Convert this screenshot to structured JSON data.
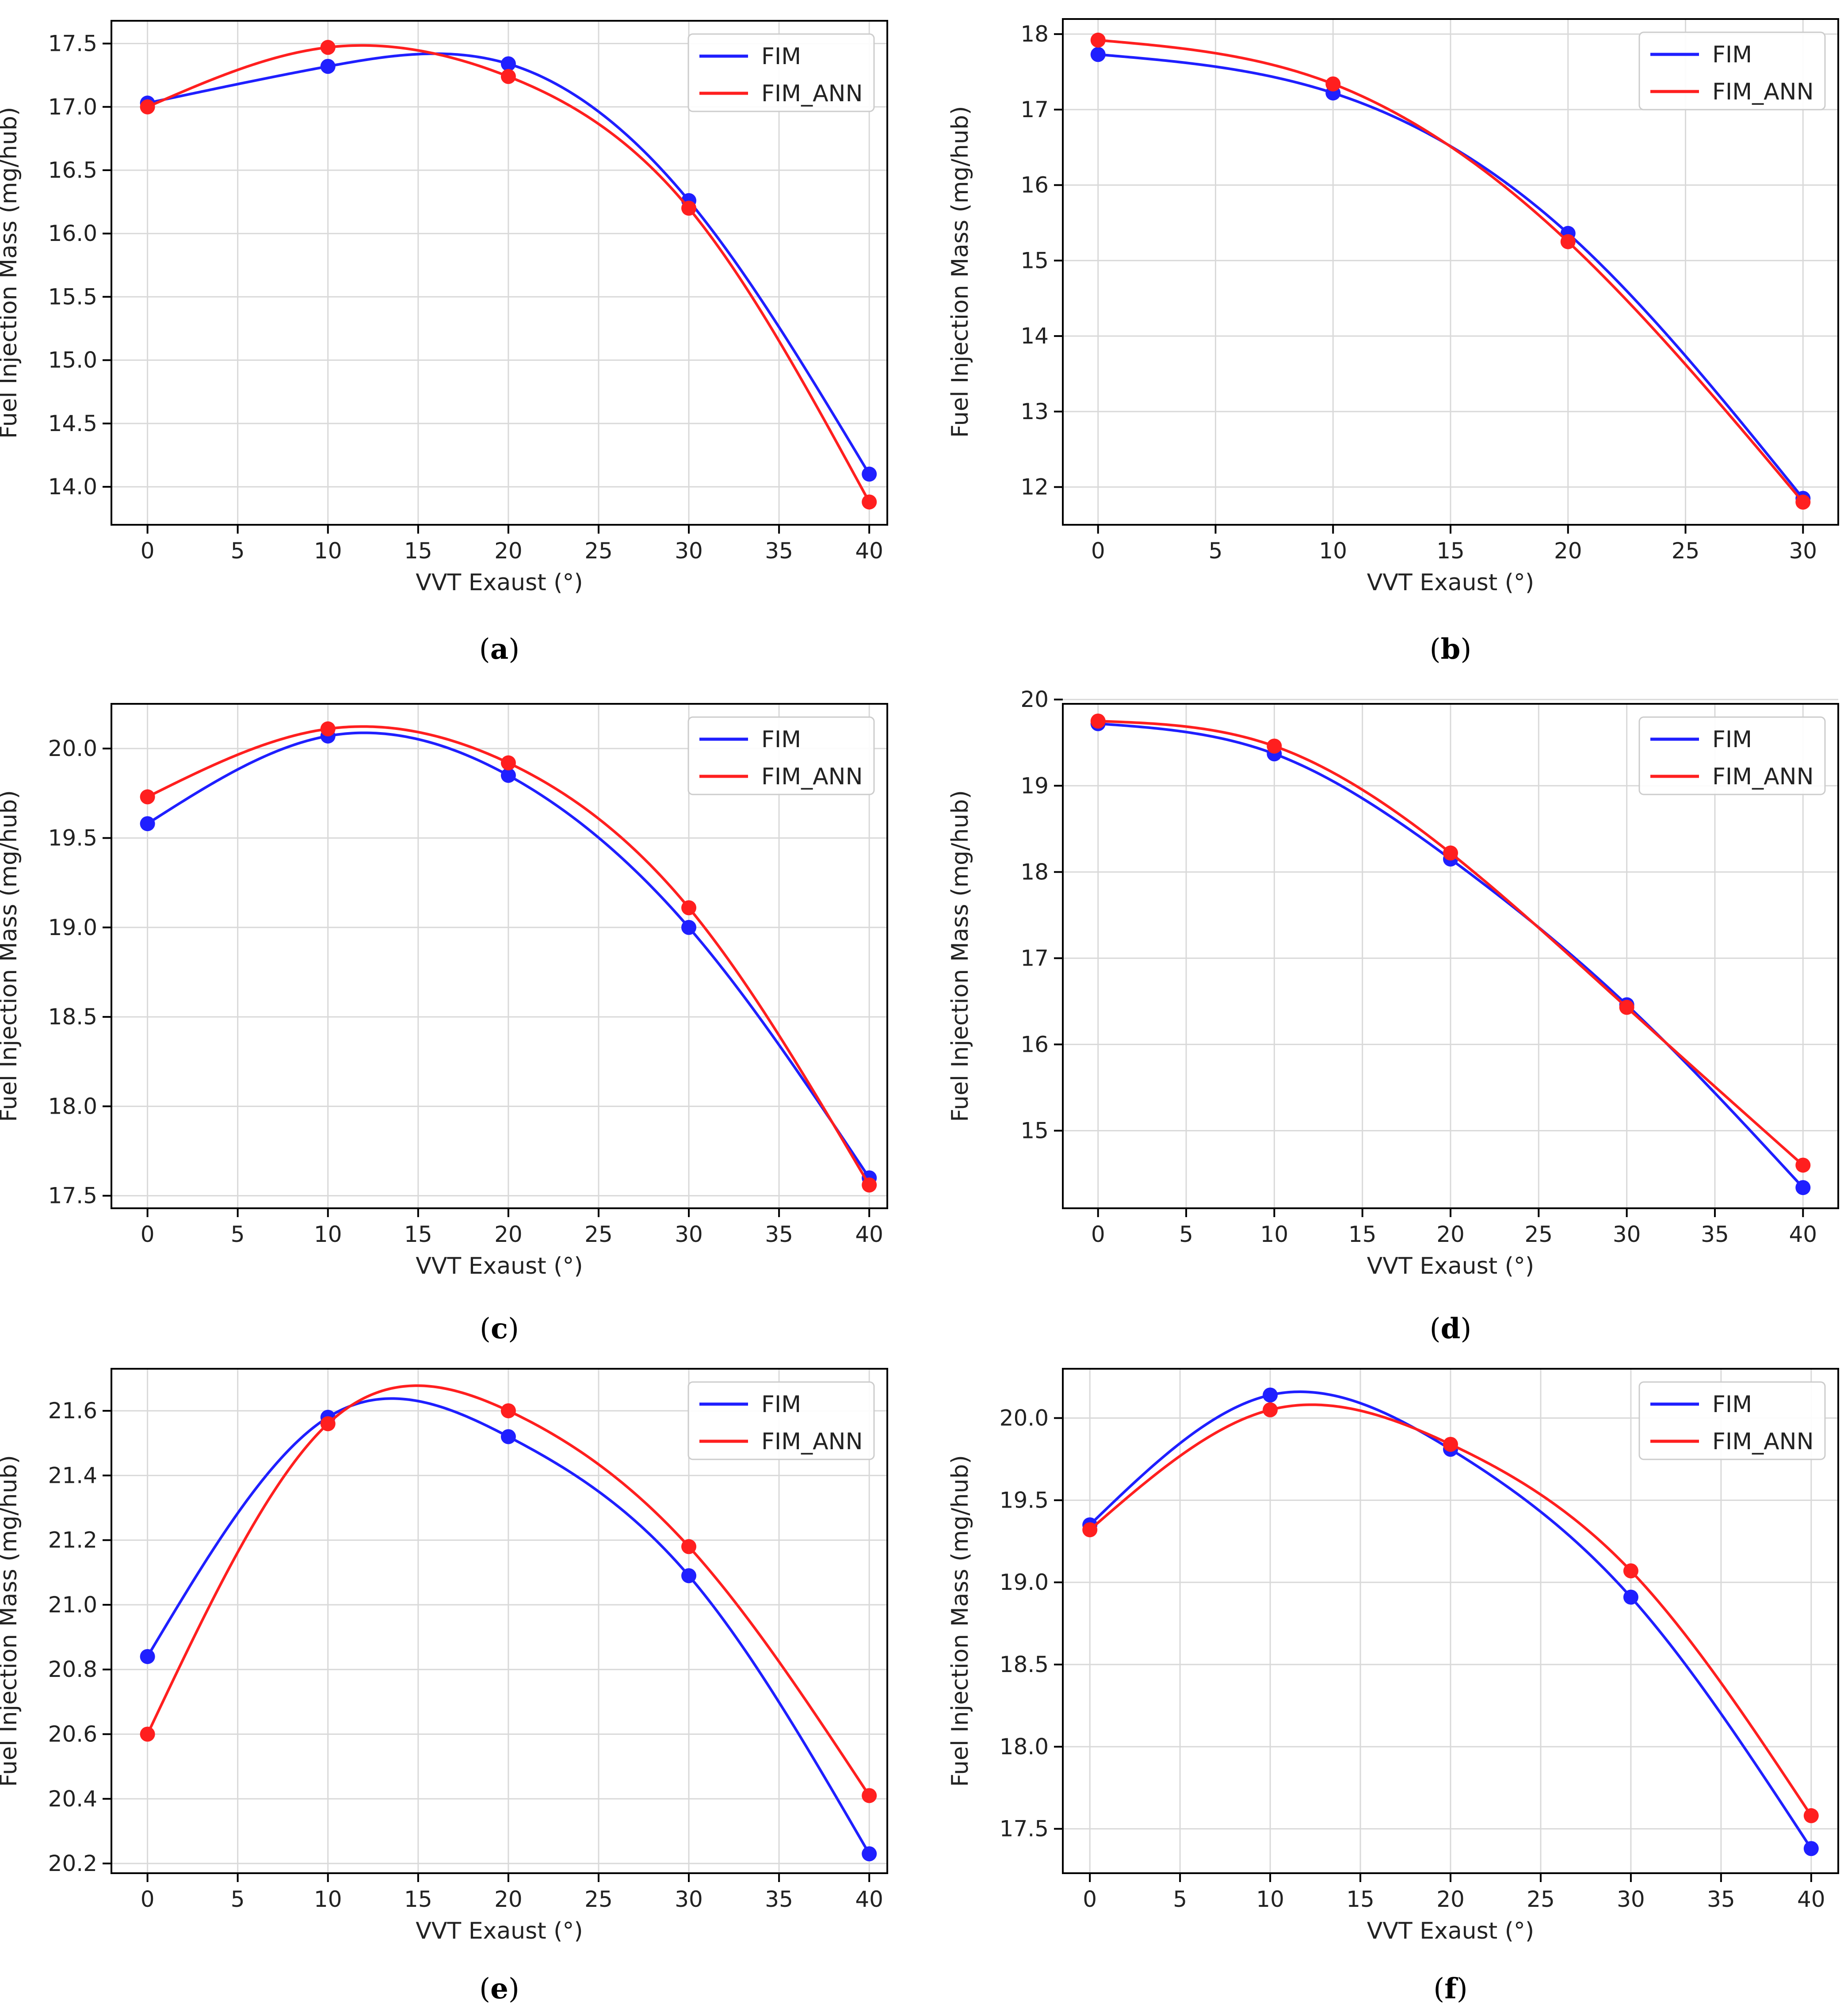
{
  "chart_data": [
    {
      "id": "a",
      "type": "line",
      "caption_label": "a",
      "xlabel": "VVT Exaust (°)",
      "ylabel": "Fuel Injection Mass (mg/hub)",
      "xlim": [
        -2,
        41
      ],
      "ylim": [
        13.7,
        17.68
      ],
      "xticks": [
        0,
        5,
        10,
        15,
        20,
        25,
        30,
        35,
        40
      ],
      "yticks": [
        14.0,
        14.5,
        15.0,
        15.5,
        16.0,
        16.5,
        17.0,
        17.5
      ],
      "ytick_decimals": 1,
      "grid": true,
      "legend": "top-right",
      "series": [
        {
          "name": "FIM",
          "color": "#1f1fff",
          "x": [
            0,
            10,
            20,
            30,
            40
          ],
          "y": [
            17.03,
            17.32,
            17.34,
            16.26,
            14.1
          ]
        },
        {
          "name": "FIM_ANN",
          "color": "#ff1f1f",
          "x": [
            0,
            10,
            20,
            30,
            40
          ],
          "y": [
            17.0,
            17.47,
            17.24,
            16.2,
            13.88
          ]
        }
      ]
    },
    {
      "id": "b",
      "type": "line",
      "caption_label": "b",
      "xlabel": "VVT Exaust (°)",
      "ylabel": "Fuel Injection Mass (mg/hub)",
      "xlim": [
        -1.5,
        31.5
      ],
      "ylim": [
        11.5,
        18.2
      ],
      "xticks": [
        0,
        5,
        10,
        15,
        20,
        25,
        30
      ],
      "yticks": [
        12,
        13,
        14,
        15,
        16,
        17,
        18
      ],
      "ytick_decimals": 0,
      "grid": true,
      "legend": "top-right",
      "series": [
        {
          "name": "FIM",
          "color": "#1f1fff",
          "x": [
            0,
            10,
            20,
            30
          ],
          "y": [
            17.73,
            17.22,
            15.36,
            11.85
          ]
        },
        {
          "name": "FIM_ANN",
          "color": "#ff1f1f",
          "x": [
            0,
            10,
            20,
            30
          ],
          "y": [
            17.92,
            17.34,
            15.25,
            11.8
          ]
        }
      ]
    },
    {
      "id": "c",
      "type": "line",
      "caption_label": "c",
      "xlabel": "VVT Exaust (°)",
      "ylabel": "Fuel Injection Mass (mg/hub)",
      "xlim": [
        -2,
        41
      ],
      "ylim": [
        17.43,
        20.25
      ],
      "xticks": [
        0,
        5,
        10,
        15,
        20,
        25,
        30,
        35,
        40
      ],
      "yticks": [
        17.5,
        18.0,
        18.5,
        19.0,
        19.5,
        20.0
      ],
      "ytick_decimals": 1,
      "grid": true,
      "legend": "top-right",
      "series": [
        {
          "name": "FIM",
          "color": "#1f1fff",
          "x": [
            0,
            10,
            20,
            30,
            40
          ],
          "y": [
            19.58,
            20.07,
            19.85,
            19.0,
            17.6
          ]
        },
        {
          "name": "FIM_ANN",
          "color": "#ff1f1f",
          "x": [
            0,
            10,
            20,
            30,
            40
          ],
          "y": [
            19.73,
            20.11,
            19.92,
            19.11,
            17.56
          ]
        }
      ]
    },
    {
      "id": "d",
      "type": "line",
      "caption_label": "d",
      "xlabel": "VVT Exaust (°)",
      "ylabel": "Fuel Injection Mass (mg/hub)",
      "xlim": [
        -2,
        42
      ],
      "ylim": [
        14.1,
        19.95
      ],
      "xticks": [
        0,
        5,
        10,
        15,
        20,
        25,
        30,
        35,
        40
      ],
      "yticks": [
        15,
        16,
        17,
        18,
        19,
        20
      ],
      "ytick_decimals": 0,
      "grid": true,
      "legend": "top-right",
      "series": [
        {
          "name": "FIM",
          "color": "#1f1fff",
          "x": [
            0,
            10,
            20,
            30,
            40
          ],
          "y": [
            19.72,
            19.37,
            18.15,
            16.46,
            14.34
          ]
        },
        {
          "name": "FIM_ANN",
          "color": "#ff1f1f",
          "x": [
            0,
            10,
            20,
            30,
            40
          ],
          "y": [
            19.75,
            19.46,
            18.22,
            16.43,
            14.6
          ]
        }
      ]
    },
    {
      "id": "e",
      "type": "line",
      "caption_label": "e",
      "xlabel": "VVT Exaust (°)",
      "ylabel": "Fuel Injection Mass (mg/hub)",
      "xlim": [
        -2,
        41
      ],
      "ylim": [
        20.17,
        21.73
      ],
      "xticks": [
        0,
        5,
        10,
        15,
        20,
        25,
        30,
        35,
        40
      ],
      "yticks": [
        20.2,
        20.4,
        20.6,
        20.8,
        21.0,
        21.2,
        21.4,
        21.6
      ],
      "ytick_decimals": 1,
      "grid": true,
      "legend": "top-right",
      "series": [
        {
          "name": "FIM",
          "color": "#1f1fff",
          "x": [
            0,
            10,
            20,
            30,
            40
          ],
          "y": [
            20.84,
            21.58,
            21.52,
            21.09,
            20.23
          ]
        },
        {
          "name": "FIM_ANN",
          "color": "#ff1f1f",
          "x": [
            0,
            10,
            20,
            30,
            40
          ],
          "y": [
            20.6,
            21.56,
            21.6,
            21.18,
            20.41
          ]
        }
      ]
    },
    {
      "id": "f",
      "type": "line",
      "caption_label": "f",
      "xlabel": "VVT Exaust (°)",
      "ylabel": "Fuel Injection Mass (mg/hub)",
      "xlim": [
        -1.5,
        41.5
      ],
      "ylim": [
        17.23,
        20.3
      ],
      "xticks": [
        0,
        5,
        10,
        15,
        20,
        25,
        30,
        35,
        40
      ],
      "yticks": [
        17.5,
        18.0,
        18.5,
        19.0,
        19.5,
        20.0
      ],
      "ytick_decimals": 1,
      "grid": true,
      "legend": "top-right",
      "series": [
        {
          "name": "FIM",
          "color": "#1f1fff",
          "x": [
            0,
            10,
            20,
            30,
            40
          ],
          "y": [
            19.35,
            20.14,
            19.81,
            18.91,
            17.38
          ]
        },
        {
          "name": "FIM_ANN",
          "color": "#ff1f1f",
          "x": [
            0,
            10,
            20,
            30,
            40
          ],
          "y": [
            19.32,
            20.05,
            19.84,
            19.07,
            17.58
          ]
        }
      ]
    }
  ]
}
